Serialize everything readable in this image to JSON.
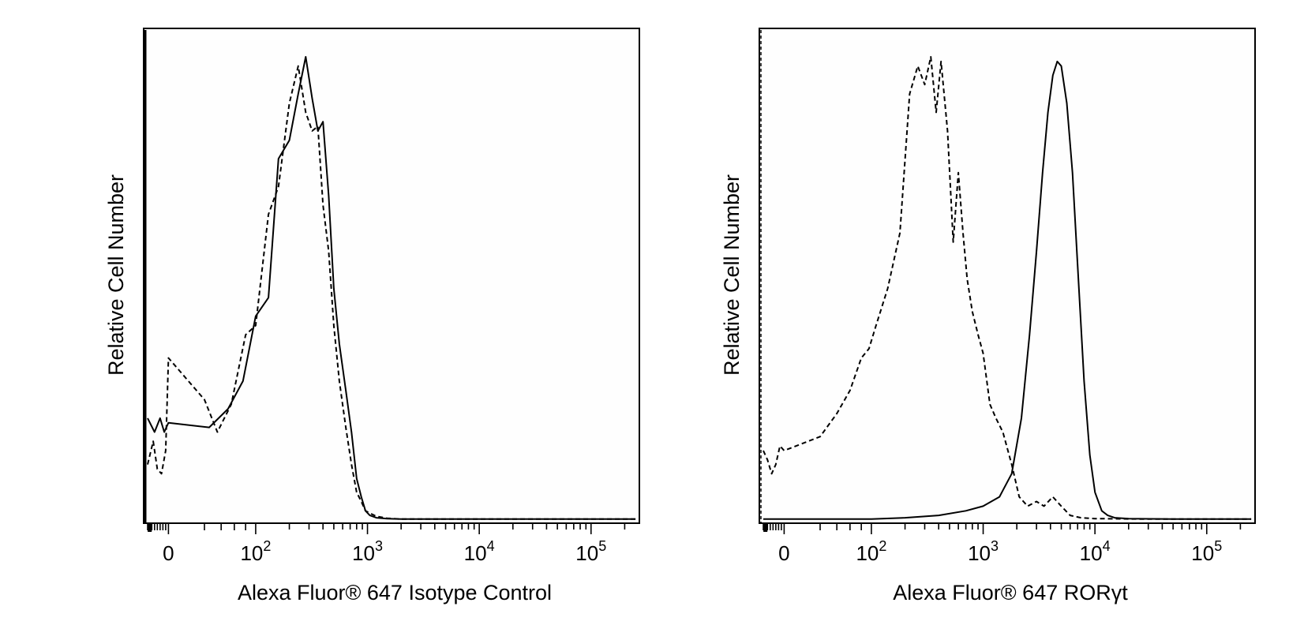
{
  "chart_data": [
    {
      "type": "line",
      "xlabel": "Alexa Fluor® 647 Isotype Control",
      "ylabel": "Relative Cell Number",
      "xscale": "biexponential",
      "x_tick_labels": [
        {
          "value": 0,
          "base": "0",
          "exp": ""
        },
        {
          "value": 100,
          "base": "10",
          "exp": "2"
        },
        {
          "value": 1000,
          "base": "10",
          "exp": "3"
        },
        {
          "value": 10000,
          "base": "10",
          "exp": "4"
        },
        {
          "value": 100000,
          "base": "10",
          "exp": "5"
        }
      ],
      "ylim": [
        0,
        100
      ],
      "grid": false,
      "series": [
        {
          "style": "solid",
          "x": [
            -150,
            -100,
            -60,
            -30,
            0,
            25,
            50,
            75,
            100,
            130,
            160,
            200,
            240,
            280,
            320,
            360,
            400,
            450,
            500,
            560,
            640,
            720,
            800,
            880,
            960,
            1050,
            1200,
            1500,
            2000,
            5000,
            20000,
            100000,
            250000
          ],
          "y": [
            22,
            19,
            22,
            19,
            21,
            20,
            24,
            30,
            44,
            48,
            78,
            82,
            92,
            100,
            91,
            84,
            86,
            70,
            50,
            38,
            28,
            19,
            9,
            5,
            2,
            1,
            0.5,
            0.3,
            0.2,
            0.2,
            0.2,
            0.2,
            0.2
          ]
        },
        {
          "style": "dashed",
          "x": [
            -150,
            -110,
            -80,
            -50,
            -20,
            0,
            20,
            35,
            55,
            80,
            100,
            130,
            160,
            200,
            240,
            280,
            320,
            360,
            400,
            450,
            500,
            560,
            640,
            720,
            800,
            880,
            960,
            1050,
            1200,
            1500,
            2000,
            5000,
            20000,
            100000,
            250000
          ],
          "y": [
            12,
            17,
            11,
            10,
            15,
            35,
            26,
            19,
            25,
            40,
            42,
            66,
            72,
            90,
            98,
            88,
            84,
            85,
            68,
            58,
            42,
            30,
            20,
            12,
            6,
            4,
            2,
            1.5,
            0.8,
            0.4,
            0.2,
            0.2,
            0.2,
            0.2,
            0.2
          ]
        }
      ]
    },
    {
      "type": "line",
      "xlabel": "Alexa Fluor® 647  RORγt",
      "ylabel": "Relative Cell Number",
      "xscale": "biexponential",
      "x_tick_labels": [
        {
          "value": 0,
          "base": "0",
          "exp": ""
        },
        {
          "value": 100,
          "base": "10",
          "exp": "2"
        },
        {
          "value": 1000,
          "base": "10",
          "exp": "3"
        },
        {
          "value": 10000,
          "base": "10",
          "exp": "4"
        },
        {
          "value": 100000,
          "base": "10",
          "exp": "5"
        }
      ],
      "ylim": [
        0,
        100
      ],
      "grid": false,
      "series": [
        {
          "style": "solid",
          "x": [
            -150,
            100,
            200,
            400,
            700,
            1000,
            1400,
            1800,
            2200,
            2600,
            3000,
            3400,
            3800,
            4200,
            4600,
            5000,
            5600,
            6300,
            7000,
            8000,
            9000,
            10000,
            11500,
            13000,
            15000,
            20000,
            50000,
            100000,
            250000
          ],
          "y": [
            0.2,
            0.2,
            0.5,
            1,
            2,
            3,
            5,
            10,
            22,
            40,
            58,
            75,
            88,
            96,
            99,
            98,
            90,
            75,
            55,
            30,
            14,
            6,
            2,
            1,
            0.5,
            0.3,
            0.2,
            0.2,
            0.2
          ],
          "note": ""
        },
        {
          "style": "dashed",
          "x": [
            -150,
            -120,
            -90,
            -60,
            -30,
            0,
            20,
            40,
            60,
            80,
            95,
            110,
            140,
            180,
            220,
            260,
            300,
            340,
            380,
            420,
            480,
            540,
            600,
            660,
            720,
            800,
            900,
            1000,
            1150,
            1300,
            1500,
            1800,
            2100,
            2500,
            3000,
            3500,
            4200,
            5000,
            6000,
            7500,
            10000,
            30000,
            100000,
            250000
          ],
          "y": [
            15,
            13,
            10,
            12,
            16,
            15,
            18,
            23,
            28,
            35,
            37,
            42,
            50,
            62,
            92,
            98,
            94,
            100,
            88,
            99,
            84,
            60,
            75,
            62,
            52,
            45,
            40,
            36,
            25,
            22,
            19,
            12,
            5,
            3,
            4,
            3,
            5,
            3,
            1,
            0.5,
            0.3,
            0.2,
            0.2,
            0.2
          ]
        }
      ]
    }
  ]
}
